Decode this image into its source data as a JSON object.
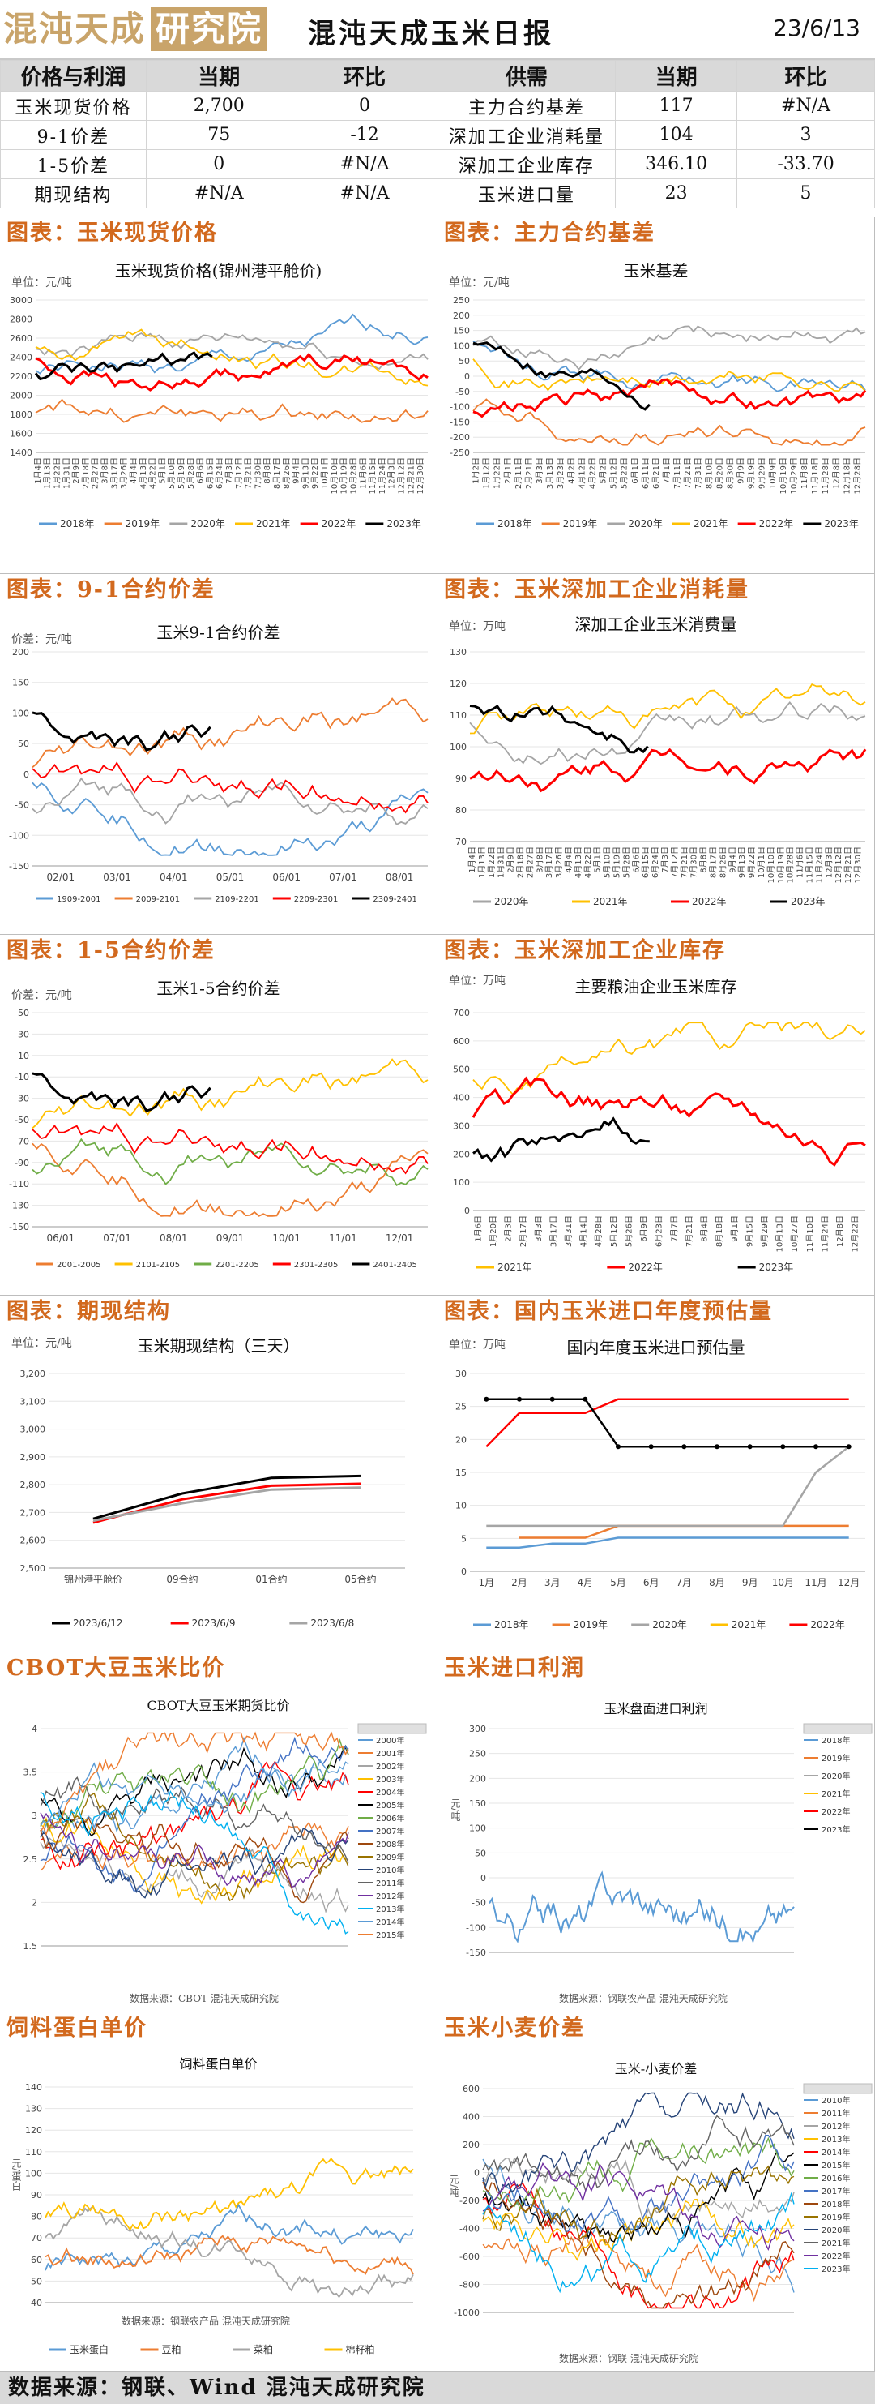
{
  "header": {
    "logo_text": "混沌天成",
    "logo_box": "研究院",
    "title": "混沌天成玉米日报",
    "date": "23/6/13"
  },
  "kpi": {
    "headers": [
      "价格与利润",
      "当期",
      "环比",
      "供需",
      "当期",
      "环比"
    ],
    "rows": [
      [
        "玉米现货价格",
        "2,700",
        "0",
        "主力合约基差",
        "117",
        "#N/A"
      ],
      [
        "9-1价差",
        "75",
        "-12",
        "深加工企业消耗量",
        "104",
        "3"
      ],
      [
        "1-5价差",
        "0",
        "#N/A",
        "深加工企业库存",
        "346.10",
        "-33.70"
      ],
      [
        "期现结构",
        "#N/A",
        "#N/A",
        "玉米进口量",
        "23",
        "5"
      ]
    ]
  },
  "panels": {
    "spot": {
      "title": "图表：玉米现货价格",
      "chart_title": "玉米现货价格(锦州港平舱价)",
      "unit": "单位：元/吨",
      "yticks": [
        "3000",
        "2800",
        "2600",
        "2400",
        "2200",
        "2000",
        "1800",
        "1600",
        "1400"
      ],
      "xticks": [
        "1月4日",
        "1月13日",
        "1月22日",
        "1月31日",
        "2月9日",
        "2月18日",
        "2月27日",
        "3月8日",
        "3月17日",
        "3月26日",
        "4月4日",
        "4月13日",
        "4月22日",
        "5月1日",
        "5月10日",
        "5月19日",
        "5月28日",
        "6月6日",
        "6月15日",
        "6月24日",
        "7月3日",
        "7月12日",
        "7月21日",
        "7月30日",
        "8月8日",
        "8月17日",
        "8月26日",
        "9月4日",
        "9月13日",
        "9月22日",
        "10月1日",
        "10月10日",
        "10月19日",
        "10月28日",
        "11月6日",
        "11月15日",
        "11月24日",
        "12月3日",
        "12月12日",
        "12月21日",
        "12月30日"
      ],
      "legend": [
        "2018年",
        "2019年",
        "2020年",
        "2021年",
        "2022年",
        "2023年"
      ]
    },
    "basis": {
      "title": "图表：主力合约基差",
      "chart_title": "玉米基差",
      "unit": "单位：元/吨",
      "yticks": [
        "250",
        "200",
        "150",
        "100",
        "50",
        "0",
        "-50",
        "-100",
        "-150",
        "-200",
        "-250"
      ],
      "xticks": [
        "1月2日",
        "1月12日",
        "1月22日",
        "2月1日",
        "2月11日",
        "2月21日",
        "3月3日",
        "3月13日",
        "3月23日",
        "4月2日",
        "4月12日",
        "4月22日",
        "5月2日",
        "5月12日",
        "5月22日",
        "6月1日",
        "6月11日",
        "6月21日",
        "7月1日",
        "7月11日",
        "7月21日",
        "7月31日",
        "8月10日",
        "8月20日",
        "8月30日",
        "9月9日",
        "9月19日",
        "9月29日",
        "10月9日",
        "10月19日",
        "10月29日",
        "11月8日",
        "11月18日",
        "11月28日",
        "12月8日",
        "12月18日",
        "12月28日"
      ],
      "legend": [
        "2018年",
        "2019年",
        "2020年",
        "2021年",
        "2022年",
        "2023年"
      ]
    },
    "spread91": {
      "title": "图表：9-1合约价差",
      "chart_title": "玉米9-1合约价差",
      "unit": "价差：元/吨",
      "yticks": [
        "200",
        "150",
        "100",
        "50",
        "0",
        "-50",
        "-100",
        "-150"
      ],
      "xticks": [
        "02/01",
        "03/01",
        "04/01",
        "05/01",
        "06/01",
        "07/01",
        "08/01"
      ],
      "legend": [
        "1909-2001",
        "2009-2101",
        "2109-2201",
        "2209-2301",
        "2309-2401"
      ]
    },
    "consumption": {
      "title": "图表：玉米深加工企业消耗量",
      "chart_title": "深加工企业玉米消费量",
      "unit": "单位：万吨",
      "yticks": [
        "130",
        "120",
        "110",
        "100",
        "90",
        "80",
        "70"
      ],
      "xticks": [
        "1月4日",
        "1月13日",
        "1月22日",
        "1月31日",
        "2月9日",
        "2月18日",
        "2月27日",
        "3月8日",
        "3月17日",
        "3月26日",
        "4月4日",
        "4月13日",
        "4月22日",
        "5月1日",
        "5月10日",
        "5月19日",
        "5月28日",
        "6月6日",
        "6月15日",
        "6月24日",
        "7月3日",
        "7月12日",
        "7月21日",
        "7月30日",
        "8月8日",
        "8月17日",
        "8月26日",
        "9月4日",
        "9月13日",
        "9月22日",
        "10月1日",
        "10月10日",
        "10月19日",
        "10月28日",
        "11月6日",
        "11月15日",
        "11月24日",
        "12月3日",
        "12月12日",
        "12月21日",
        "12月30日"
      ],
      "legend": [
        "2020年",
        "2021年",
        "2022年",
        "2023年"
      ]
    },
    "spread15": {
      "title": "图表：1-5合约价差",
      "chart_title": "玉米1-5合约价差",
      "unit": "价差：元/吨",
      "yticks": [
        "50",
        "30",
        "10",
        "-10",
        "-30",
        "-50",
        "-70",
        "-90",
        "-110",
        "-130",
        "-150"
      ],
      "xticks": [
        "06/01",
        "07/01",
        "08/01",
        "09/01",
        "10/01",
        "11/01",
        "12/01"
      ],
      "legend": [
        "2001-2005",
        "2101-2105",
        "2201-2205",
        "2301-2305",
        "2401-2405"
      ]
    },
    "inventory": {
      "title": "图表：玉米深加工企业库存",
      "chart_title": "主要粮油企业玉米库存",
      "unit": "单位：万吨",
      "yticks": [
        "700",
        "600",
        "500",
        "400",
        "300",
        "200",
        "100",
        "0"
      ],
      "xticks": [
        "1月6日",
        "1月20日",
        "2月3日",
        "2月17日",
        "3月3日",
        "3月17日",
        "3月31日",
        "4月14日",
        "4月28日",
        "5月12日",
        "5月26日",
        "6月9日",
        "6月23日",
        "7月7日",
        "7月21日",
        "8月4日",
        "8月18日",
        "9月1日",
        "9月15日",
        "9月29日",
        "10月13日",
        "10月27日",
        "11月10日",
        "11月24日",
        "12月8日",
        "12月22日"
      ],
      "legend": [
        "2021年",
        "2022年",
        "2023年"
      ]
    },
    "structure": {
      "title": "图表：期现结构",
      "chart_title": "玉米期现结构（三天）",
      "unit": "单位：元/吨",
      "yticks": [
        "3,200",
        "3,100",
        "3,000",
        "2,900",
        "2,800",
        "2,700",
        "2,600",
        "2,500"
      ],
      "xticks": [
        "锦州港平舱价",
        "09合约",
        "01合约",
        "05合约"
      ],
      "legend": [
        "2023/6/12",
        "2023/6/9",
        "2023/6/8"
      ]
    },
    "import_est": {
      "title": "图表：国内玉米进口年度预估量",
      "chart_title": "国内年度玉米进口预估量",
      "unit": "单位：万吨",
      "yticks": [
        "30",
        "25",
        "20",
        "15",
        "10",
        "5",
        "0"
      ],
      "xticks": [
        "1月",
        "2月",
        "3月",
        "4月",
        "5月",
        "6月",
        "7月",
        "8月",
        "9月",
        "10月",
        "11月",
        "12月"
      ],
      "legend": [
        "2018年",
        "2019年",
        "2020年",
        "2021年",
        "2022年"
      ]
    },
    "cbot": {
      "title": "CBOT大豆玉米比价",
      "chart_title": "CBOT大豆玉米期货比价",
      "source": "数据来源：CBOT 混沌天成研究院",
      "yticks": [
        "4",
        "3.5",
        "3",
        "2.5",
        "2",
        "1.5"
      ],
      "legend": [
        "2000年",
        "2001年",
        "2002年",
        "2003年",
        "2004年",
        "2005年",
        "2006年",
        "2007年",
        "2008年",
        "2009年",
        "2010年",
        "2011年",
        "2012年",
        "2013年",
        "2014年",
        "2015年"
      ]
    },
    "import_profit": {
      "title": "玉米进口利润",
      "chart_title": "玉米盘面进口利润",
      "unit": "元/吨",
      "source": "数据来源：钢联农产品 混沌天成研究院",
      "yticks": [
        "300",
        "250",
        "200",
        "150",
        "100",
        "50",
        "0",
        "-50",
        "-100",
        "-150"
      ],
      "legend": [
        "2018年",
        "2019年",
        "2020年",
        "2021年",
        "2022年",
        "2023年"
      ]
    },
    "feed": {
      "title": "饲料蛋白单价",
      "chart_title": "饲料蛋白单价",
      "unit": "元/蛋白",
      "source": "数据来源：钢联农产品 混沌天成研究院",
      "yticks": [
        "140",
        "130",
        "120",
        "110",
        "100",
        "90",
        "80",
        "70",
        "60",
        "50",
        "40"
      ],
      "legend": [
        "玉米蛋白",
        "豆粕",
        "菜粕",
        "棉籽粕"
      ]
    },
    "wheat": {
      "title": "玉米小麦价差",
      "chart_title": "玉米-小麦价差",
      "unit": "元/吨",
      "source": "数据来源：钢联 混沌天成研究院",
      "yticks": [
        "600",
        "400",
        "200",
        "0",
        "-200",
        "-400",
        "-600",
        "-800",
        "-1000"
      ],
      "legend": [
        "2010年",
        "2011年",
        "2012年",
        "2013年",
        "2014年",
        "2015年",
        "2016年",
        "2017年",
        "2018年",
        "2019年",
        "2020年",
        "2021年",
        "2022年",
        "2023年"
      ]
    }
  },
  "footer": {
    "text": "数据来源：钢联、Wind  混沌天成研究院"
  },
  "colors": {
    "accent": "#d2691e",
    "year2018": "#5b9bd5",
    "year2019": "#ed7d31",
    "year2020": "#a5a5a5",
    "year2021": "#ffc000",
    "year2022": "#ff0000",
    "year2023": "#000000",
    "green": "#70ad47"
  }
}
